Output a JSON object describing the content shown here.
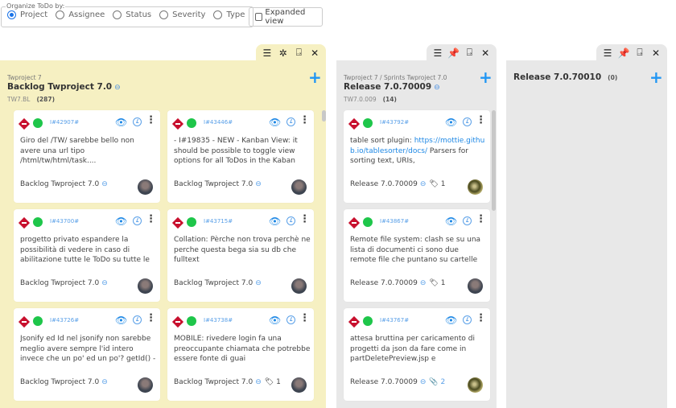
{
  "organize": {
    "legend": "Organize ToDo by:",
    "options": [
      {
        "label": "Project",
        "selected": true
      },
      {
        "label": "Assignee",
        "selected": false
      },
      {
        "label": "Status",
        "selected": false
      },
      {
        "label": "Severity",
        "selected": false
      },
      {
        "label": "Type",
        "selected": false
      }
    ]
  },
  "expanded_view": {
    "label": "Expanded view",
    "checked": false
  },
  "colors": {
    "backlog_bg": "#f6f0c2",
    "column_bg": "#e8e8e8",
    "accent": "#2196f3",
    "severity": "#c8102e",
    "status": "#1ec64a"
  },
  "columns": [
    {
      "breadcrumb": "Twproject 7",
      "title": "Backlog Twproject 7.0",
      "code": "TW7.BL",
      "count": "(287)",
      "tab_icons": [
        "menu-icon",
        "unpin-icon",
        "enter-icon",
        "close-icon"
      ],
      "cards": [
        {
          "id": "I#42907#",
          "text": "Giro del /TW/ sarebbe bello non avere una url tipo /html/tw/html/task....",
          "project": "Backlog Twproject 7.0",
          "avatar": "a"
        },
        {
          "id": "I#43446#",
          "text": "- I#19835 - NEW - Kanban View: it should be possible to toggle view options for all ToDos in the Kaban view:",
          "project": "Backlog Twproject 7.0",
          "avatar": "a"
        },
        {
          "id": "I#43700#",
          "text": "progetto privato espandere la possibilità di vedere in caso di abilitazione tutte le ToDo su tutte le",
          "project": "Backlog Twproject 7.0",
          "avatar": "a"
        },
        {
          "id": "I#43715#",
          "text": "Collation: Pèrche non trova perchè ne perche questa bega sia su db che fulltext",
          "project": "Backlog Twproject 7.0",
          "avatar": "a"
        },
        {
          "id": "I#43726#",
          "text": "Jsonify ed Id nel jsonify non sarebbe meglio avere sempre l'id intero invece che un po' ed un po'? getId() ->",
          "project": "Backlog Twproject 7.0",
          "avatar": "a"
        },
        {
          "id": "I#43738#",
          "text": "MOBILE: rivedere login fa una preoccupante chiamata che potrebbe essere fonte di guai",
          "project": "Backlog Twproject 7.0",
          "tags": "1",
          "avatar": "a"
        }
      ]
    },
    {
      "breadcrumb": "Twproject 7 / Sprints Twproject 7.0",
      "title": "Release 7.0.70009",
      "code": "TW7.0.009",
      "count": "(14)",
      "tab_icons": [
        "menu-icon",
        "pin-icon",
        "enter-icon",
        "close-icon"
      ],
      "cards": [
        {
          "id": "I#43792#",
          "text": "table sort plugin:",
          "link": "https://mottie.github.io/tablesorter/docs/",
          "text_after": " Parsers for sorting text, URIs,",
          "project": "Release 7.0.70009",
          "tags": "1",
          "avatar": "b"
        },
        {
          "id": "I#43867#",
          "text": "Remote file system: clash se su una lista di documenti ci sono due remote file che puntano su cartelle diverse dello",
          "project": "Release 7.0.70009",
          "tags": "1",
          "avatar": "a"
        },
        {
          "id": "I#43767#",
          "text": "attesa bruttina per caricamento di progetti da json da fare come in partDeletePreview.jsp e performDelete",
          "project": "Release 7.0.70009",
          "attachments": "2",
          "avatar": "b"
        }
      ]
    },
    {
      "title": "Release 7.0.70010",
      "count": "(0)",
      "tab_icons": [
        "menu-icon",
        "pin-icon",
        "enter-icon",
        "close-icon"
      ],
      "cards": []
    }
  ]
}
